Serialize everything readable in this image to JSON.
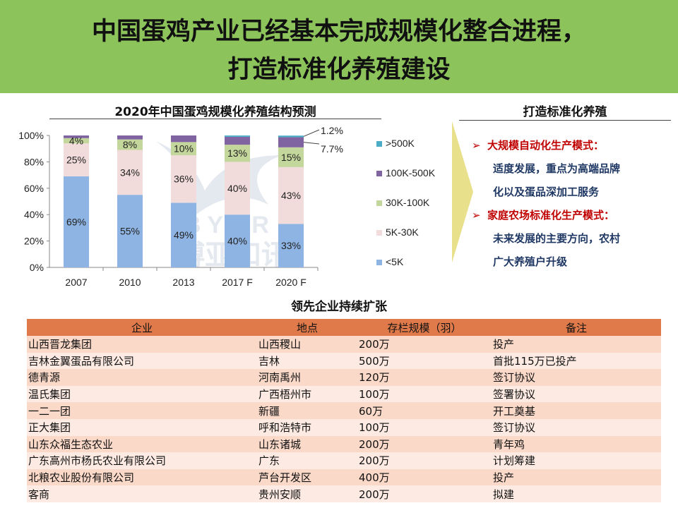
{
  "header": {
    "title_line1": "中国蛋鸡产业已经基本完成规模化整合进程，",
    "title_line2": "打造标准化养殖建设"
  },
  "watermark": {
    "latin": "B Y A R",
    "cjk": "博亚和讯"
  },
  "right_panel": {
    "title": "打造标准化养殖",
    "bullet1_head": "大规模自动化生产模式：",
    "bullet1_line1": "适度发展，重点为高端品牌",
    "bullet1_line2": "化以及蛋品深加工服务",
    "bullet2_head": "家庭农场标准化生产模式：",
    "bullet2_line1": "未来发展的主要方向，农村",
    "bullet2_line2": "广大养殖户升级",
    "arrow_glyph": "➢"
  },
  "chart_data": {
    "type": "bar",
    "stacked": true,
    "title": "2020年中国蛋鸡规模化养殖结构预测",
    "categories": [
      "2007",
      "2010",
      "2013",
      "2017 F",
      "2020 F"
    ],
    "yticks": [
      "0%",
      "20%",
      "40%",
      "60%",
      "80%",
      "100%"
    ],
    "ylim": [
      0,
      100
    ],
    "series": [
      {
        "name": "<5K",
        "color": "#8eb4e3",
        "values": [
          69,
          55,
          49,
          40,
          33
        ],
        "labels": [
          "69%",
          "55%",
          "49%",
          "40%",
          "33%"
        ]
      },
      {
        "name": "5K-30K",
        "color": "#f2dcdb",
        "values": [
          25,
          34,
          36,
          40,
          43
        ],
        "labels": [
          "25%",
          "34%",
          "36%",
          "40%",
          "43%"
        ]
      },
      {
        "name": "30K-100K",
        "color": "#c3d69b",
        "values": [
          4,
          8,
          10,
          13,
          15
        ],
        "labels": [
          "4%",
          "8%",
          "10%",
          "13%",
          "15%"
        ]
      },
      {
        "name": "100K-500K",
        "color": "#8064a2",
        "values": [
          2,
          3,
          5,
          6,
          7.7
        ],
        "labels": [
          "",
          "",
          "",
          "",
          "7.7%"
        ]
      },
      {
        "name": ">500K",
        "color": "#4bacc6",
        "values": [
          0,
          0,
          0,
          1,
          1.2
        ],
        "labels": [
          "",
          "",
          "",
          "",
          "1.2%"
        ]
      }
    ],
    "legend_order": [
      ">500K",
      "100K-500K",
      "30K-100K",
      "5K-30K",
      "<5K"
    ],
    "legend_position": "right"
  },
  "table": {
    "title": "领先企业持续扩张",
    "headers": [
      "企业",
      "地点",
      "存栏规模（羽）",
      "备注"
    ],
    "rows": [
      [
        "山西晋龙集团",
        "山西稷山",
        "200万",
        "投产"
      ],
      [
        "吉林金翼蛋品有限公司",
        "吉林",
        "500万",
        "首批115万已投产"
      ],
      [
        "德青源",
        "河南禹州",
        "120万",
        "签订协议"
      ],
      [
        "温氏集团",
        "广西梧州市",
        "100万",
        "签署协议"
      ],
      [
        "一二一团",
        "新疆",
        "60万",
        "开工奠基"
      ],
      [
        "正大集团",
        "呼和浩特市",
        "100万",
        "签订协议"
      ],
      [
        "山东众福生态农业",
        "山东诸城",
        "200万",
        "青年鸡"
      ],
      [
        "广东高州市杨氏农业有限公司",
        "广东",
        "200万",
        "计划筹建"
      ],
      [
        "北粮农业股份有限公司",
        "芦台开发区",
        "400万",
        "投产"
      ],
      [
        "客商",
        "贵州安顺",
        "200万",
        "拟建"
      ]
    ]
  }
}
